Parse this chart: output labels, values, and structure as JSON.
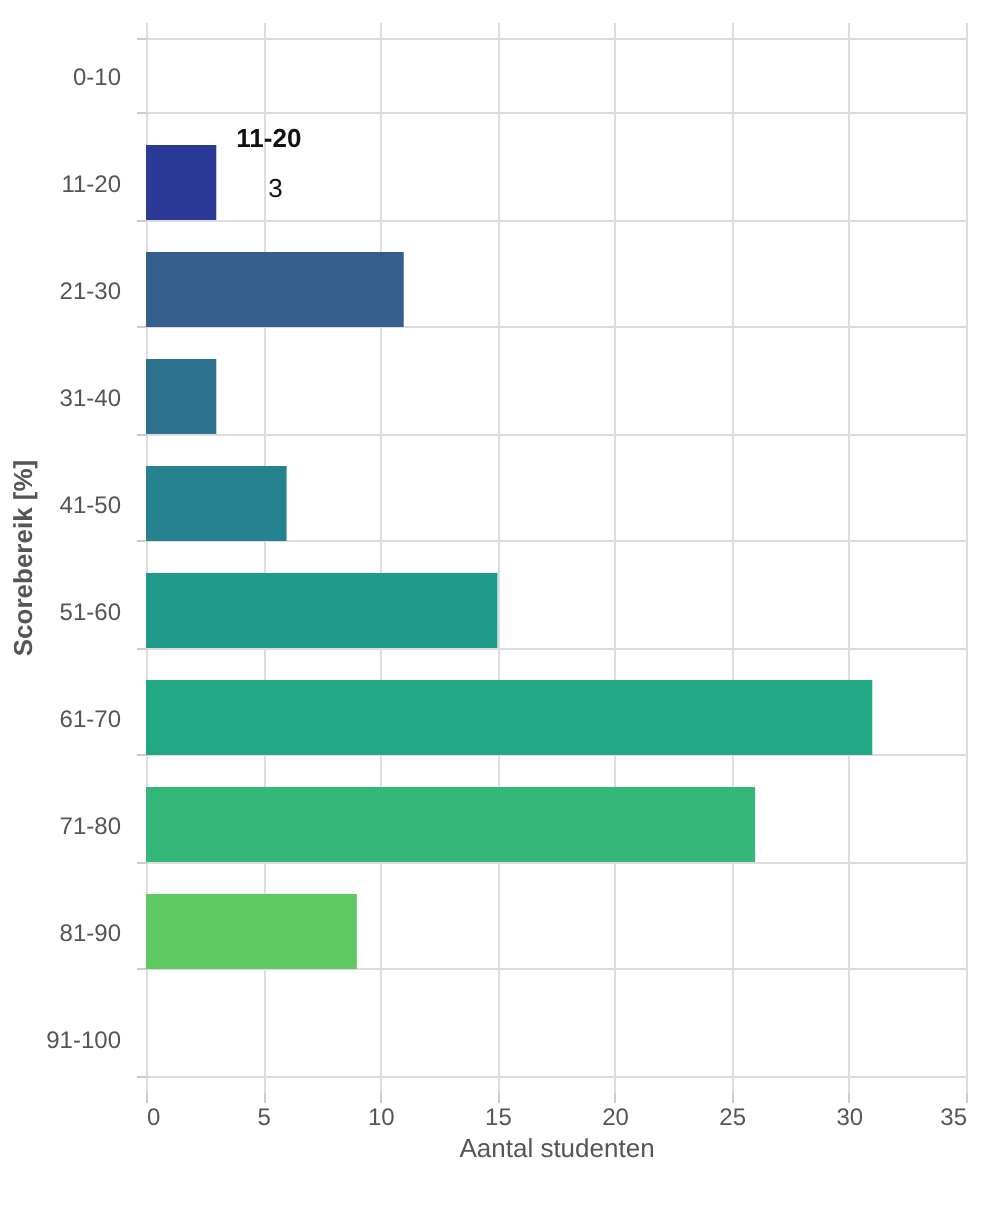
{
  "chart_data": {
    "type": "bar",
    "orientation": "horizontal",
    "ylabel": "Scorebereik [%]",
    "xlabel": "Aantal studenten",
    "categories": [
      "0-10",
      "11-20",
      "21-30",
      "31-40",
      "41-50",
      "51-60",
      "61-70",
      "71-80",
      "81-90",
      "91-100"
    ],
    "values": [
      0,
      3,
      11,
      3,
      6,
      15,
      31,
      26,
      9,
      0
    ],
    "colors": [
      "#440154",
      "#2a3a96",
      "#35608d",
      "#2c728e",
      "#26828e",
      "#1f9a8a",
      "#22a884",
      "#35b779",
      "#5ec962",
      "#fde725"
    ],
    "xlim": [
      0,
      35
    ],
    "xticks": [
      0,
      5,
      10,
      15,
      20,
      25,
      30,
      35
    ],
    "grid": true,
    "annotations": [
      {
        "text": "11-20",
        "x": 3,
        "y": "11-20"
      },
      {
        "text": "3",
        "x": 3,
        "y": "11-20"
      }
    ]
  }
}
